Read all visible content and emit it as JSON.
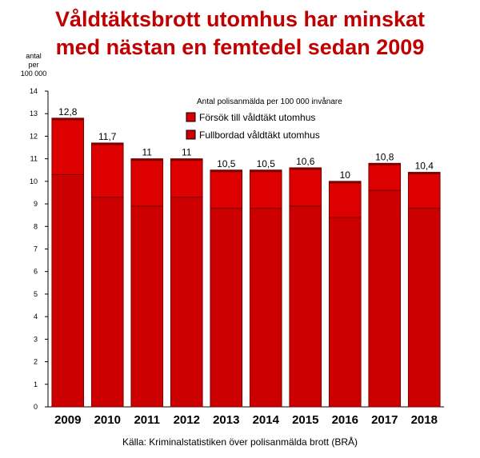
{
  "title_line1": "Våldtäktsbrott utomhus har minskat",
  "title_line2": "med nästan en femtedel sedan 2009",
  "unit_lines": [
    "antal",
    "per",
    "100 000"
  ],
  "source": "Källa: Kriminalstatistiken över polisanmälda brott (BRÅ)",
  "colors": {
    "bar_attempt": "#dd0000",
    "bar_completed": "#cc0000",
    "bar_edge": "#7a0000",
    "title": "#c00000"
  },
  "chart_data": {
    "type": "bar",
    "stacked": true,
    "categories": [
      "2009",
      "2010",
      "2011",
      "2012",
      "2013",
      "2014",
      "2015",
      "2016",
      "2017",
      "2018"
    ],
    "legend_title": "Antal polisanmälda per 100 000 invånare",
    "legend_position": "top-right",
    "series": [
      {
        "name": "Fullbordad våldtäkt utomhus",
        "values": [
          10.3,
          9.3,
          8.9,
          9.3,
          8.8,
          8.8,
          8.9,
          8.4,
          9.6,
          8.8
        ]
      },
      {
        "name": "Försök till våldtäkt utomhus",
        "values": [
          2.5,
          2.4,
          2.1,
          1.7,
          1.7,
          1.7,
          1.7,
          1.6,
          1.2,
          1.6
        ]
      }
    ],
    "total_labels": [
      "12,8",
      "11,7",
      "11",
      "11",
      "10,5",
      "10,5",
      "10,6",
      "10",
      "10,8",
      "10,4"
    ],
    "ylim": [
      0,
      14
    ],
    "yticks": [
      0,
      1,
      2,
      3,
      4,
      5,
      6,
      7,
      8,
      9,
      10,
      11,
      12,
      13,
      14
    ],
    "grid": false
  }
}
